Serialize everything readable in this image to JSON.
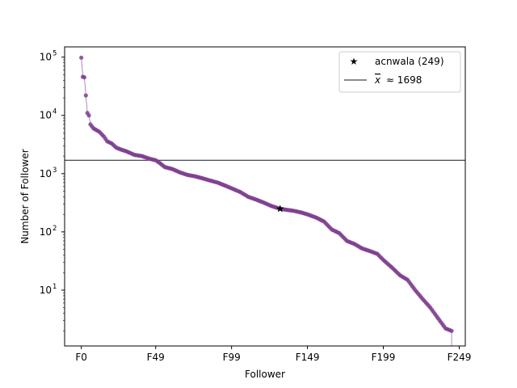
{
  "chart_data": {
    "type": "scatter",
    "xlabel": "Follower",
    "ylabel": "Number of Follower",
    "yscale": "log",
    "xlim": [
      -11,
      253
    ],
    "ylim": [
      1.1,
      150000
    ],
    "x_tick_labels": [
      "F0",
      "F49",
      "F99",
      "F149",
      "F199",
      "F249"
    ],
    "x_tick_positions": [
      0,
      49,
      99,
      149,
      199,
      249
    ],
    "y_ticks": [
      {
        "value": 10,
        "base": "10",
        "exp": "1"
      },
      {
        "value": 100,
        "base": "10",
        "exp": "2"
      },
      {
        "value": 1000,
        "base": "10",
        "exp": "3"
      },
      {
        "value": 10000,
        "base": "10",
        "exp": "4"
      },
      {
        "value": 100000,
        "base": "10",
        "exp": "5"
      }
    ],
    "series_color": "#7f3f8f",
    "mean_value": 1698,
    "mean_line_color": "#0d1b2a",
    "highlight": {
      "name": "acnwala",
      "index": 131,
      "value": 249,
      "label": "acnwala (249)"
    },
    "legend": {
      "position": "top-right",
      "entries": [
        "acnwala (249)",
        "≈ 1698"
      ],
      "mean_symbol": "x"
    },
    "control_points": [
      [
        0,
        98000
      ],
      [
        1,
        46000
      ],
      [
        2,
        45000
      ],
      [
        3,
        22000
      ],
      [
        4,
        11000
      ],
      [
        5,
        10000
      ],
      [
        6,
        7000
      ],
      [
        8,
        6000
      ],
      [
        12,
        5200
      ],
      [
        15,
        4300
      ],
      [
        17,
        3600
      ],
      [
        20,
        3300
      ],
      [
        23,
        2800
      ],
      [
        26,
        2600
      ],
      [
        30,
        2400
      ],
      [
        35,
        2100
      ],
      [
        40,
        2000
      ],
      [
        45,
        1800
      ],
      [
        49,
        1700
      ],
      [
        52,
        1500
      ],
      [
        55,
        1300
      ],
      [
        60,
        1200
      ],
      [
        65,
        1050
      ],
      [
        70,
        950
      ],
      [
        75,
        900
      ],
      [
        80,
        830
      ],
      [
        85,
        760
      ],
      [
        90,
        700
      ],
      [
        95,
        620
      ],
      [
        99,
        560
      ],
      [
        105,
        480
      ],
      [
        110,
        400
      ],
      [
        115,
        360
      ],
      [
        120,
        320
      ],
      [
        125,
        280
      ],
      [
        131,
        249
      ],
      [
        135,
        240
      ],
      [
        140,
        230
      ],
      [
        145,
        215
      ],
      [
        149,
        200
      ],
      [
        155,
        175
      ],
      [
        160,
        150
      ],
      [
        165,
        110
      ],
      [
        170,
        95
      ],
      [
        175,
        70
      ],
      [
        180,
        62
      ],
      [
        185,
        52
      ],
      [
        190,
        47
      ],
      [
        195,
        42
      ],
      [
        199,
        33
      ],
      [
        205,
        24
      ],
      [
        210,
        18
      ],
      [
        215,
        15
      ],
      [
        220,
        10
      ],
      [
        225,
        7
      ],
      [
        230,
        5
      ],
      [
        235,
        3.3
      ],
      [
        240,
        2.2
      ],
      [
        244,
        2.0
      ]
    ],
    "point_count": 245
  }
}
